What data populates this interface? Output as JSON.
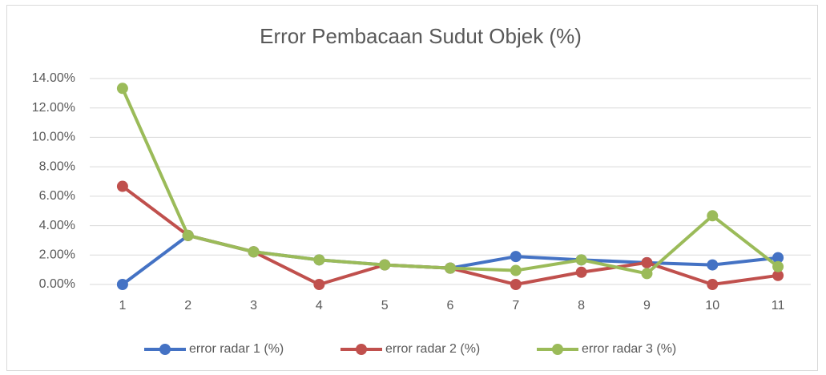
{
  "chart_data": {
    "type": "line",
    "title": "Error Pembacaan Sudut Objek (%)",
    "categories": [
      "1",
      "2",
      "3",
      "4",
      "5",
      "6",
      "7",
      "8",
      "9",
      "10",
      "11"
    ],
    "series": [
      {
        "name": "error radar 1 (%)",
        "color": "#4472c4",
        "values": [
          0,
          3.33,
          2.22,
          1.67,
          1.33,
          1.11,
          1.9,
          1.67,
          1.48,
          1.33,
          1.82
        ]
      },
      {
        "name": "error radar 2 (%)",
        "color": "#c0504d",
        "values": [
          6.67,
          3.33,
          2.22,
          0,
          1.33,
          1.11,
          0,
          0.83,
          1.48,
          0,
          0.61
        ]
      },
      {
        "name": "error radar 3 (%)",
        "color": "#9bbb59",
        "values": [
          13.33,
          3.33,
          2.22,
          1.67,
          1.33,
          1.11,
          0.95,
          1.67,
          0.74,
          4.67,
          1.21
        ]
      }
    ],
    "ylim": [
      0,
      14
    ],
    "yticks": [
      {
        "value": 0,
        "label": "0.00%"
      },
      {
        "value": 2,
        "label": "2.00%"
      },
      {
        "value": 4,
        "label": "4.00%"
      },
      {
        "value": 6,
        "label": "6.00%"
      },
      {
        "value": 8,
        "label": "8.00%"
      },
      {
        "value": 10,
        "label": "10.00%"
      },
      {
        "value": 12,
        "label": "12.00%"
      },
      {
        "value": 14,
        "label": "14.00%"
      }
    ],
    "grid": true,
    "legend": "bottom"
  }
}
